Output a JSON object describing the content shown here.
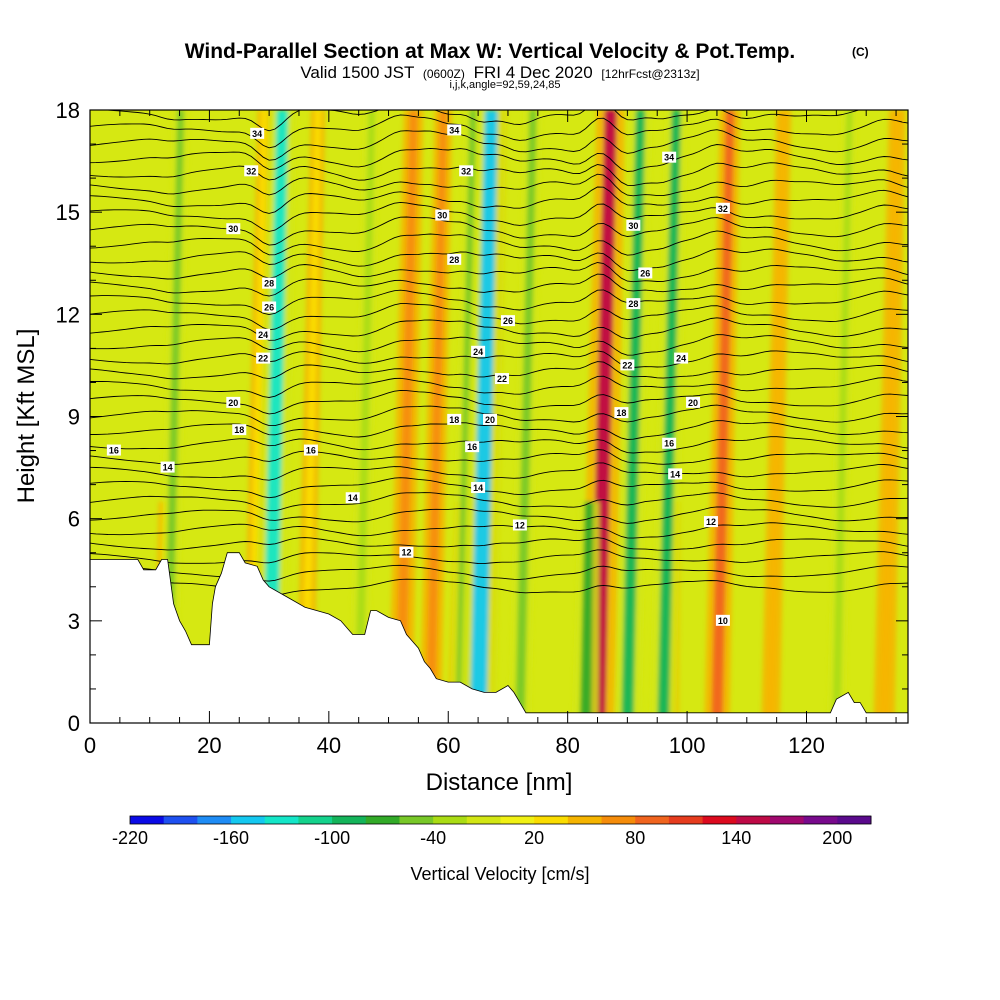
{
  "chart_data": {
    "type": "heatmap",
    "title": "Wind-Parallel Section at Max W: Vertical Velocity & Pot.Temp.",
    "title_mark": "(C)",
    "subtitle": {
      "valid": "Valid 1500 JST",
      "utc": "(0600Z)",
      "date": "FRI 4 Dec 2020",
      "fcst": "[12hrFcst@2313z]"
    },
    "ijk_line": "i,j,k,angle=92,59,24,85",
    "xlabel": "Distance [nm]",
    "ylabel": "Height [Kft MSL]",
    "xlim": [
      0,
      137
    ],
    "ylim": [
      0,
      18
    ],
    "x_ticks": [
      "0",
      "20",
      "40",
      "60",
      "80",
      "100",
      "120"
    ],
    "y_ticks": [
      "0",
      "3",
      "6",
      "9",
      "12",
      "15",
      "18"
    ],
    "colorbar": {
      "label": "Vertical Velocity [cm/s]",
      "min": -220,
      "max": 220,
      "step": 20,
      "tick_labels": [
        "-220",
        "-160",
        "-100",
        "-40",
        "20",
        "80",
        "140",
        "200"
      ],
      "colors": [
        "#0a0ae6",
        "#1e50f0",
        "#1e8cf5",
        "#14c8f0",
        "#14e6c8",
        "#14d28c",
        "#14b45a",
        "#32aa28",
        "#78c828",
        "#aadc14",
        "#d2e614",
        "#f0f014",
        "#fadc00",
        "#f5b400",
        "#f58c0a",
        "#f0641e",
        "#e63c1e",
        "#dc0a1e",
        "#be0a46",
        "#a0086e",
        "#780a8c",
        "#5a0a8c"
      ]
    },
    "updrafts": [
      {
        "x": 12,
        "w": 25,
        "height": "low"
      },
      {
        "x": 27,
        "w": 30,
        "height": "full"
      },
      {
        "x": 36,
        "w": 35,
        "height": "full"
      },
      {
        "x": 52,
        "w": 75,
        "height": "full"
      },
      {
        "x": 57,
        "w": 60,
        "height": "full"
      },
      {
        "x": 63,
        "w": 150,
        "height": "low"
      },
      {
        "x": 66,
        "w": 70,
        "height": "full"
      },
      {
        "x": 85,
        "w": 140,
        "height": "full"
      },
      {
        "x": 97,
        "w": 40,
        "height": "low"
      },
      {
        "x": 105,
        "w": 80,
        "height": "full"
      },
      {
        "x": 114,
        "w": 40,
        "height": "full"
      },
      {
        "x": 133,
        "w": 55,
        "height": "full"
      }
    ],
    "downdrafts": [
      {
        "x": 13,
        "w": -45,
        "height": "full"
      },
      {
        "x": 30,
        "w": -130,
        "height": "full"
      },
      {
        "x": 45,
        "w": -40,
        "height": "full"
      },
      {
        "x": 62,
        "w": -55,
        "height": "full"
      },
      {
        "x": 65,
        "w": -150,
        "height": "full"
      },
      {
        "x": 72,
        "w": -55,
        "height": "full"
      },
      {
        "x": 83,
        "w": -80,
        "height": "low"
      },
      {
        "x": 90,
        "w": -90,
        "height": "full"
      },
      {
        "x": 96,
        "w": -85,
        "height": "full"
      },
      {
        "x": 125,
        "w": -30,
        "height": "full"
      }
    ],
    "theta_contour_labels": [
      {
        "x": 4,
        "y": 8,
        "v": "16"
      },
      {
        "x": 13,
        "y": 7.5,
        "v": "14"
      },
      {
        "x": 24,
        "y": 9.4,
        "v": "20"
      },
      {
        "x": 25,
        "y": 8.6,
        "v": "18"
      },
      {
        "x": 24,
        "y": 14.5,
        "v": "30"
      },
      {
        "x": 27,
        "y": 16.2,
        "v": "32"
      },
      {
        "x": 28,
        "y": 17.3,
        "v": "34"
      },
      {
        "x": 29,
        "y": 10.7,
        "v": "22"
      },
      {
        "x": 29,
        "y": 11.4,
        "v": "24"
      },
      {
        "x": 30,
        "y": 12.2,
        "v": "26"
      },
      {
        "x": 30,
        "y": 12.9,
        "v": "28"
      },
      {
        "x": 37,
        "y": 8,
        "v": "16"
      },
      {
        "x": 44,
        "y": 6.6,
        "v": "14"
      },
      {
        "x": 53,
        "y": 5,
        "v": "12"
      },
      {
        "x": 59,
        "y": 14.9,
        "v": "30"
      },
      {
        "x": 61,
        "y": 13.6,
        "v": "28"
      },
      {
        "x": 61,
        "y": 8.9,
        "v": "18"
      },
      {
        "x": 61,
        "y": 17.4,
        "v": "34"
      },
      {
        "x": 63,
        "y": 16.2,
        "v": "32"
      },
      {
        "x": 64,
        "y": 8.1,
        "v": "16"
      },
      {
        "x": 65,
        "y": 10.9,
        "v": "24"
      },
      {
        "x": 65,
        "y": 6.9,
        "v": "14"
      },
      {
        "x": 67,
        "y": 8.9,
        "v": "20"
      },
      {
        "x": 69,
        "y": 10.1,
        "v": "22"
      },
      {
        "x": 70,
        "y": 11.8,
        "v": "26"
      },
      {
        "x": 72,
        "y": 5.8,
        "v": "12"
      },
      {
        "x": 89,
        "y": 9.1,
        "v": "18"
      },
      {
        "x": 90,
        "y": 10.5,
        "v": "22"
      },
      {
        "x": 91,
        "y": 12.3,
        "v": "28"
      },
      {
        "x": 91,
        "y": 14.6,
        "v": "30"
      },
      {
        "x": 93,
        "y": 13.2,
        "v": "26"
      },
      {
        "x": 97,
        "y": 16.6,
        "v": "34"
      },
      {
        "x": 97,
        "y": 8.2,
        "v": "16"
      },
      {
        "x": 98,
        "y": 7.3,
        "v": "14"
      },
      {
        "x": 99,
        "y": 10.7,
        "v": "24"
      },
      {
        "x": 101,
        "y": 9.4,
        "v": "20"
      },
      {
        "x": 106,
        "y": 15.1,
        "v": "32"
      },
      {
        "x": 104,
        "y": 5.9,
        "v": "12"
      },
      {
        "x": 106,
        "y": 3,
        "v": "10"
      }
    ],
    "terrain": [
      [
        0,
        4.8
      ],
      [
        8,
        4.8
      ],
      [
        9,
        4.5
      ],
      [
        11,
        4.5
      ],
      [
        12,
        4.8
      ],
      [
        13,
        4.8
      ],
      [
        14,
        3.5
      ],
      [
        15,
        3.0
      ],
      [
        16,
        2.7
      ],
      [
        17,
        2.3
      ],
      [
        19,
        2.3
      ],
      [
        20,
        2.3
      ],
      [
        20.5,
        3.5
      ],
      [
        21,
        4.0
      ],
      [
        22,
        4.4
      ],
      [
        23,
        5.0
      ],
      [
        25,
        5.0
      ],
      [
        26,
        4.7
      ],
      [
        28,
        4.6
      ],
      [
        29,
        4.2
      ],
      [
        30,
        4.0
      ],
      [
        32,
        3.8
      ],
      [
        34,
        3.6
      ],
      [
        36,
        3.4
      ],
      [
        38,
        3.3
      ],
      [
        40,
        3.2
      ],
      [
        42,
        3.0
      ],
      [
        44,
        2.6
      ],
      [
        46,
        2.6
      ],
      [
        47,
        3.3
      ],
      [
        48,
        3.3
      ],
      [
        50,
        3.1
      ],
      [
        52,
        3.0
      ],
      [
        53,
        2.6
      ],
      [
        54,
        2.4
      ],
      [
        55,
        2.2
      ],
      [
        56,
        1.8
      ],
      [
        57,
        1.6
      ],
      [
        58,
        1.3
      ],
      [
        60,
        1.2
      ],
      [
        62,
        1.2
      ],
      [
        64,
        1.0
      ],
      [
        66,
        0.9
      ],
      [
        68,
        0.9
      ],
      [
        70,
        1.1
      ],
      [
        71,
        0.9
      ],
      [
        72,
        0.6
      ],
      [
        73,
        0.3
      ],
      [
        90,
        0.3
      ],
      [
        124,
        0.3
      ],
      [
        125,
        0.7
      ],
      [
        127,
        0.9
      ],
      [
        128,
        0.6
      ],
      [
        129,
        0.6
      ],
      [
        130,
        0.3
      ],
      [
        137,
        0.3
      ]
    ]
  }
}
